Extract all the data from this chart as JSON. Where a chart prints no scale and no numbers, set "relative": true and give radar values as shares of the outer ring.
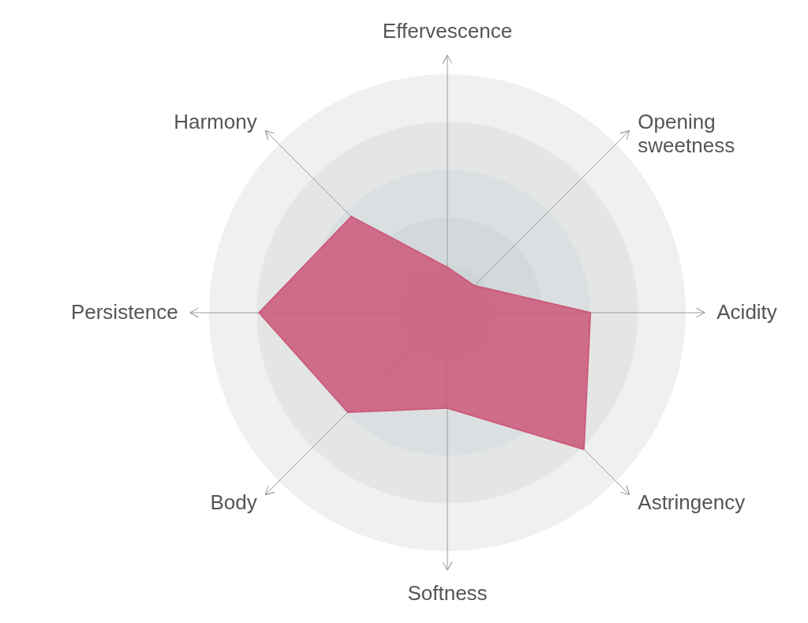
{
  "chart_data": {
    "type": "radar",
    "relative": true,
    "grid": true,
    "categories": [
      "Effervescence",
      "Opening sweetness",
      "Acidity",
      "Astringency",
      "Softness",
      "Body",
      "Persistence",
      "Harmony"
    ],
    "series": [
      {
        "color": "#cc5c7c",
        "values": [
          0.19,
          0.16,
          0.6,
          0.81,
          0.4,
          0.59,
          0.79,
          0.57
        ]
      }
    ]
  }
}
